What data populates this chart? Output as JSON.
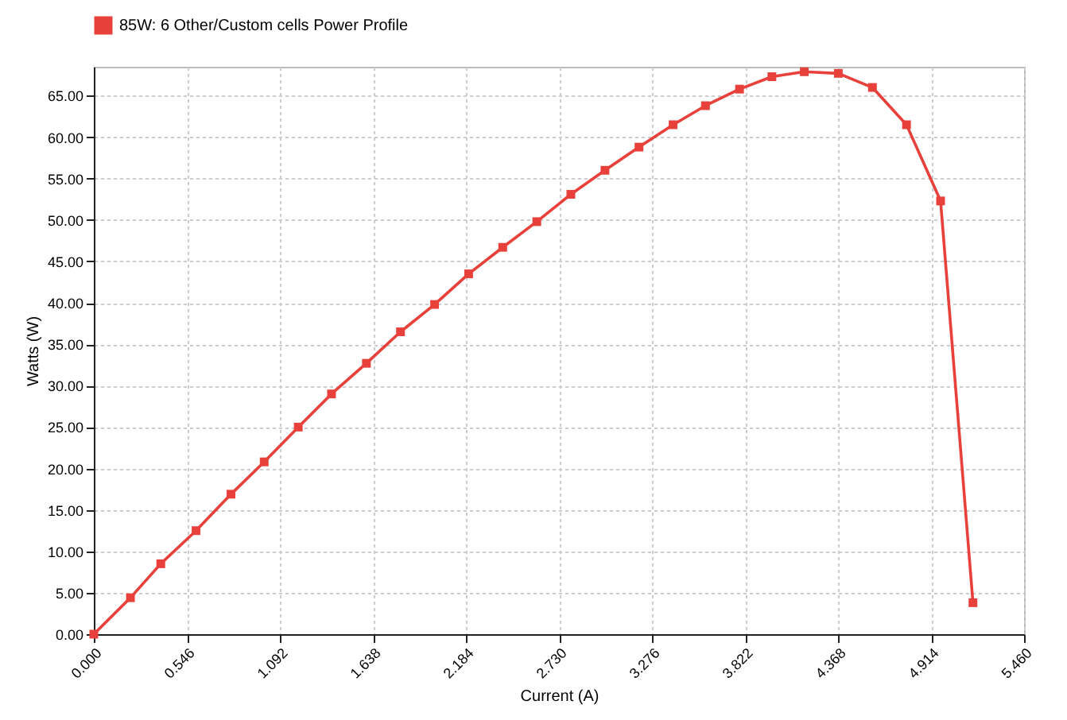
{
  "chart_data": {
    "type": "line",
    "xlabel": "Current (A)",
    "ylabel": "Watts (W)",
    "legend": "top",
    "grid": true,
    "marker": "square",
    "line_style": "solid",
    "xlim": [
      0,
      5.46
    ],
    "ylim": [
      0,
      68.5
    ],
    "xticks": [
      {
        "value": 0,
        "label": "0.000"
      },
      {
        "value": 0.546,
        "label": "0.546"
      },
      {
        "value": 1.092,
        "label": "1.092"
      },
      {
        "value": 1.638,
        "label": "1.638"
      },
      {
        "value": 2.184,
        "label": "2.184"
      },
      {
        "value": 2.73,
        "label": "2.730"
      },
      {
        "value": 3.276,
        "label": "3.276"
      },
      {
        "value": 3.822,
        "label": "3.822"
      },
      {
        "value": 4.368,
        "label": "4.368"
      },
      {
        "value": 4.914,
        "label": "4.914"
      },
      {
        "value": 5.46,
        "label": "5.460"
      }
    ],
    "yticks": [
      {
        "value": 0,
        "label": "0.00"
      },
      {
        "value": 5,
        "label": "5.00"
      },
      {
        "value": 10,
        "label": "10.00"
      },
      {
        "value": 15,
        "label": "15.00"
      },
      {
        "value": 20,
        "label": "20.00"
      },
      {
        "value": 25,
        "label": "25.00"
      },
      {
        "value": 30,
        "label": "30.00"
      },
      {
        "value": 35,
        "label": "35.00"
      },
      {
        "value": 40,
        "label": "40.00"
      },
      {
        "value": 45,
        "label": "45.00"
      },
      {
        "value": 50,
        "label": "50.00"
      },
      {
        "value": 55,
        "label": "55.00"
      },
      {
        "value": 60,
        "label": "60.00"
      },
      {
        "value": 65,
        "label": "65.00"
      }
    ],
    "series": [
      {
        "name": "85W: 6 Other/Custom cells Power Profile",
        "color": "#e8403a",
        "x": [
          0,
          0.215,
          0.393,
          0.6,
          0.805,
          1.0,
          1.2,
          1.395,
          1.6,
          1.8,
          2.0,
          2.2,
          2.4,
          2.6,
          2.8,
          3.0,
          3.2,
          3.4,
          3.59,
          3.79,
          3.98,
          4.17,
          4.37,
          4.57,
          4.77,
          4.97,
          5.16
        ],
        "values": [
          0,
          4.4,
          8.5,
          12.5,
          16.9,
          20.8,
          25,
          29,
          32.7,
          36.5,
          39.8,
          43.5,
          46.7,
          49.8,
          53.1,
          56,
          58.8,
          61.5,
          63.8,
          65.8,
          67.3,
          67.9,
          67.7,
          66,
          61.5,
          52.3,
          3.8
        ]
      }
    ]
  }
}
